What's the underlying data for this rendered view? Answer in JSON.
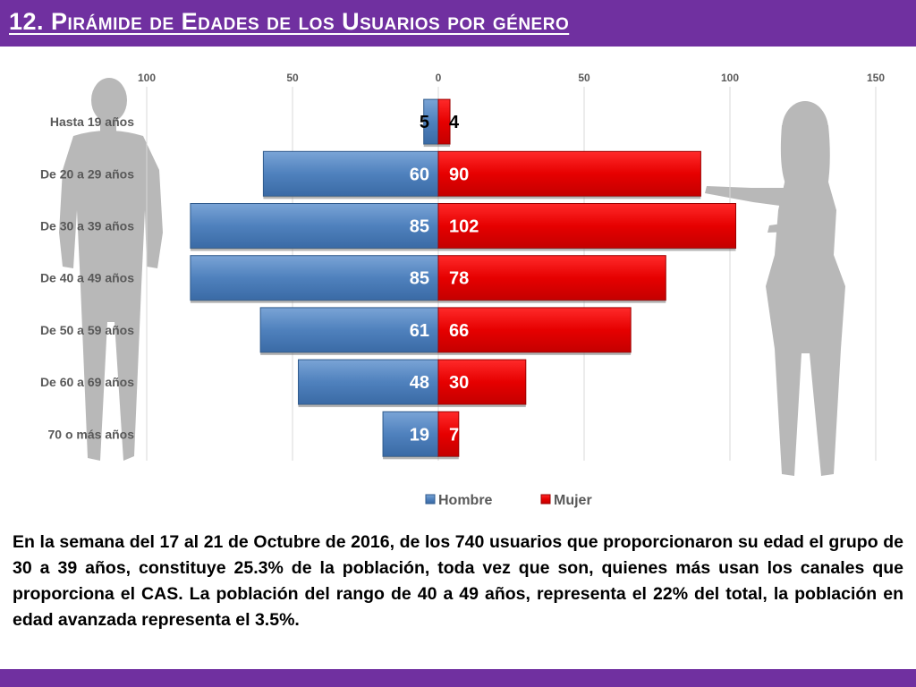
{
  "header": {
    "title": "12. Pirámide de Edades de los Usuarios por género"
  },
  "colors": {
    "header_bg": "#7030a0",
    "hombre": "#4f81bd",
    "mujer": "#e60000",
    "silhouette": "#b3b3b3"
  },
  "chart_data": {
    "type": "bar",
    "orientation": "horizontal",
    "variant": "population-pyramid",
    "categories": [
      "Hasta 19 años",
      "De 20 a 29 años",
      "De 30 a 39 años",
      "De 40 a 49 años",
      "De 50 a 59 años",
      "De 60 a 69 años",
      "70 o más años"
    ],
    "series": [
      {
        "name": "Hombre",
        "values": [
          5,
          60,
          85,
          85,
          61,
          48,
          19
        ],
        "color": "#4f81bd",
        "side": "left"
      },
      {
        "name": "Mujer",
        "values": [
          4,
          90,
          102,
          78,
          66,
          30,
          7
        ],
        "color": "#e60000",
        "side": "right"
      }
    ],
    "xaxis_ticks": [
      "100",
      "50",
      "0",
      "50",
      "100",
      "150"
    ],
    "xlim": [
      -100,
      150
    ],
    "grid": true,
    "legend_position": "bottom",
    "title": "",
    "xlabel": "",
    "ylabel": ""
  },
  "body_text": "En la semana del 17 al 21 de Octubre de 2016, de los 740 usuarios  que proporcionaron su edad el grupo de 30 a 39 años,  constituye 25.3% de la población, toda vez que son, quienes más usan los canales que proporciona el CAS. La población del rango de 40 a 49 años, representa el 22% del total, la población en edad avanzada representa el 3.5%."
}
